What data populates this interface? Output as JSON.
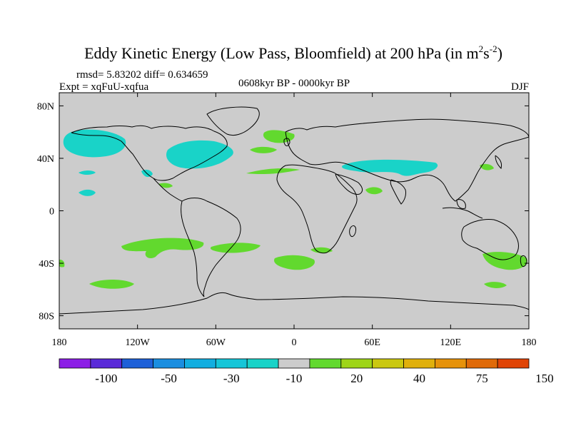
{
  "colors": {
    "land": "#000000",
    "ocean": "#cccccc",
    "neg_cyan": "#19d3c8",
    "pos_green": "#62d92e"
  },
  "chart_data": {
    "type": "contour-map",
    "title_main": "Eddy Kinetic Energy (Low Pass, Bloomfield) at 200 hPa (in m",
    "title_sup1": "2",
    "title_mid": "s",
    "title_sup2": "-2",
    "title_end": ")",
    "stats": "rmsd= 5.83202 diff= 0.634659",
    "experiment": "Expt = xqFuU-xqfua",
    "period": "0608kyr BP - 0000kyr BP",
    "season": "DJF",
    "xlabel": "",
    "ylabel": "",
    "xlim": [
      -180,
      180
    ],
    "ylim": [
      -90,
      90
    ],
    "x_ticks": [
      {
        "value": -180,
        "label": "180"
      },
      {
        "value": -120,
        "label": "120W"
      },
      {
        "value": -60,
        "label": "60W"
      },
      {
        "value": 0,
        "label": "0"
      },
      {
        "value": 60,
        "label": "60E"
      },
      {
        "value": 120,
        "label": "120E"
      },
      {
        "value": 180,
        "label": "180"
      }
    ],
    "y_ticks": [
      {
        "value": 80,
        "label": "80N"
      },
      {
        "value": 40,
        "label": "40N"
      },
      {
        "value": 0,
        "label": "0"
      },
      {
        "value": -40,
        "label": "40S"
      },
      {
        "value": -80,
        "label": "80S"
      }
    ],
    "colorbar": {
      "colors": [
        "#8c1ee6",
        "#5a2ad8",
        "#1e60d8",
        "#1a8ee0",
        "#12aee0",
        "#15c6d8",
        "#19d3c8",
        "#cccccc",
        "#62d92e",
        "#9ed518",
        "#cac810",
        "#e0b00c",
        "#e6920a",
        "#e06a08",
        "#e04406"
      ],
      "labels": [
        {
          "after_box": 2,
          "label": "-100"
        },
        {
          "after_box": 4,
          "label": "-50"
        },
        {
          "after_box": 6,
          "label": "-30"
        },
        {
          "after_box": 8,
          "label": "-10"
        },
        {
          "after_box": 10,
          "label": "20"
        },
        {
          "after_box": 12,
          "label": "40"
        },
        {
          "after_box": 14,
          "label": "75"
        },
        {
          "after_box": 16,
          "label": "150"
        }
      ]
    },
    "anomaly_regions": [
      {
        "sign": "negative",
        "region": "North Pacific",
        "lon": -155,
        "lat": 50
      },
      {
        "sign": "negative",
        "region": "Northeast America / West Atlantic",
        "lon": -75,
        "lat": 45
      },
      {
        "sign": "negative",
        "region": "Central Asia",
        "lon": 75,
        "lat": 32
      },
      {
        "sign": "negative",
        "region": "Subtropical North Pacific",
        "lon": -160,
        "lat": 34
      },
      {
        "sign": "positive",
        "region": "North Atlantic",
        "lon": -5,
        "lat": 60
      },
      {
        "sign": "positive",
        "region": "South Pacific",
        "lon": -120,
        "lat": -28
      },
      {
        "sign": "positive",
        "region": "South Atlantic",
        "lon": -35,
        "lat": -28
      },
      {
        "sign": "positive",
        "region": "South Indian Ocean",
        "lon": 10,
        "lat": -44
      },
      {
        "sign": "positive",
        "region": "Australia / Tasman",
        "lon": 155,
        "lat": -42
      },
      {
        "sign": "positive",
        "region": "Southern Ocean",
        "lon": -140,
        "lat": -60
      }
    ]
  }
}
